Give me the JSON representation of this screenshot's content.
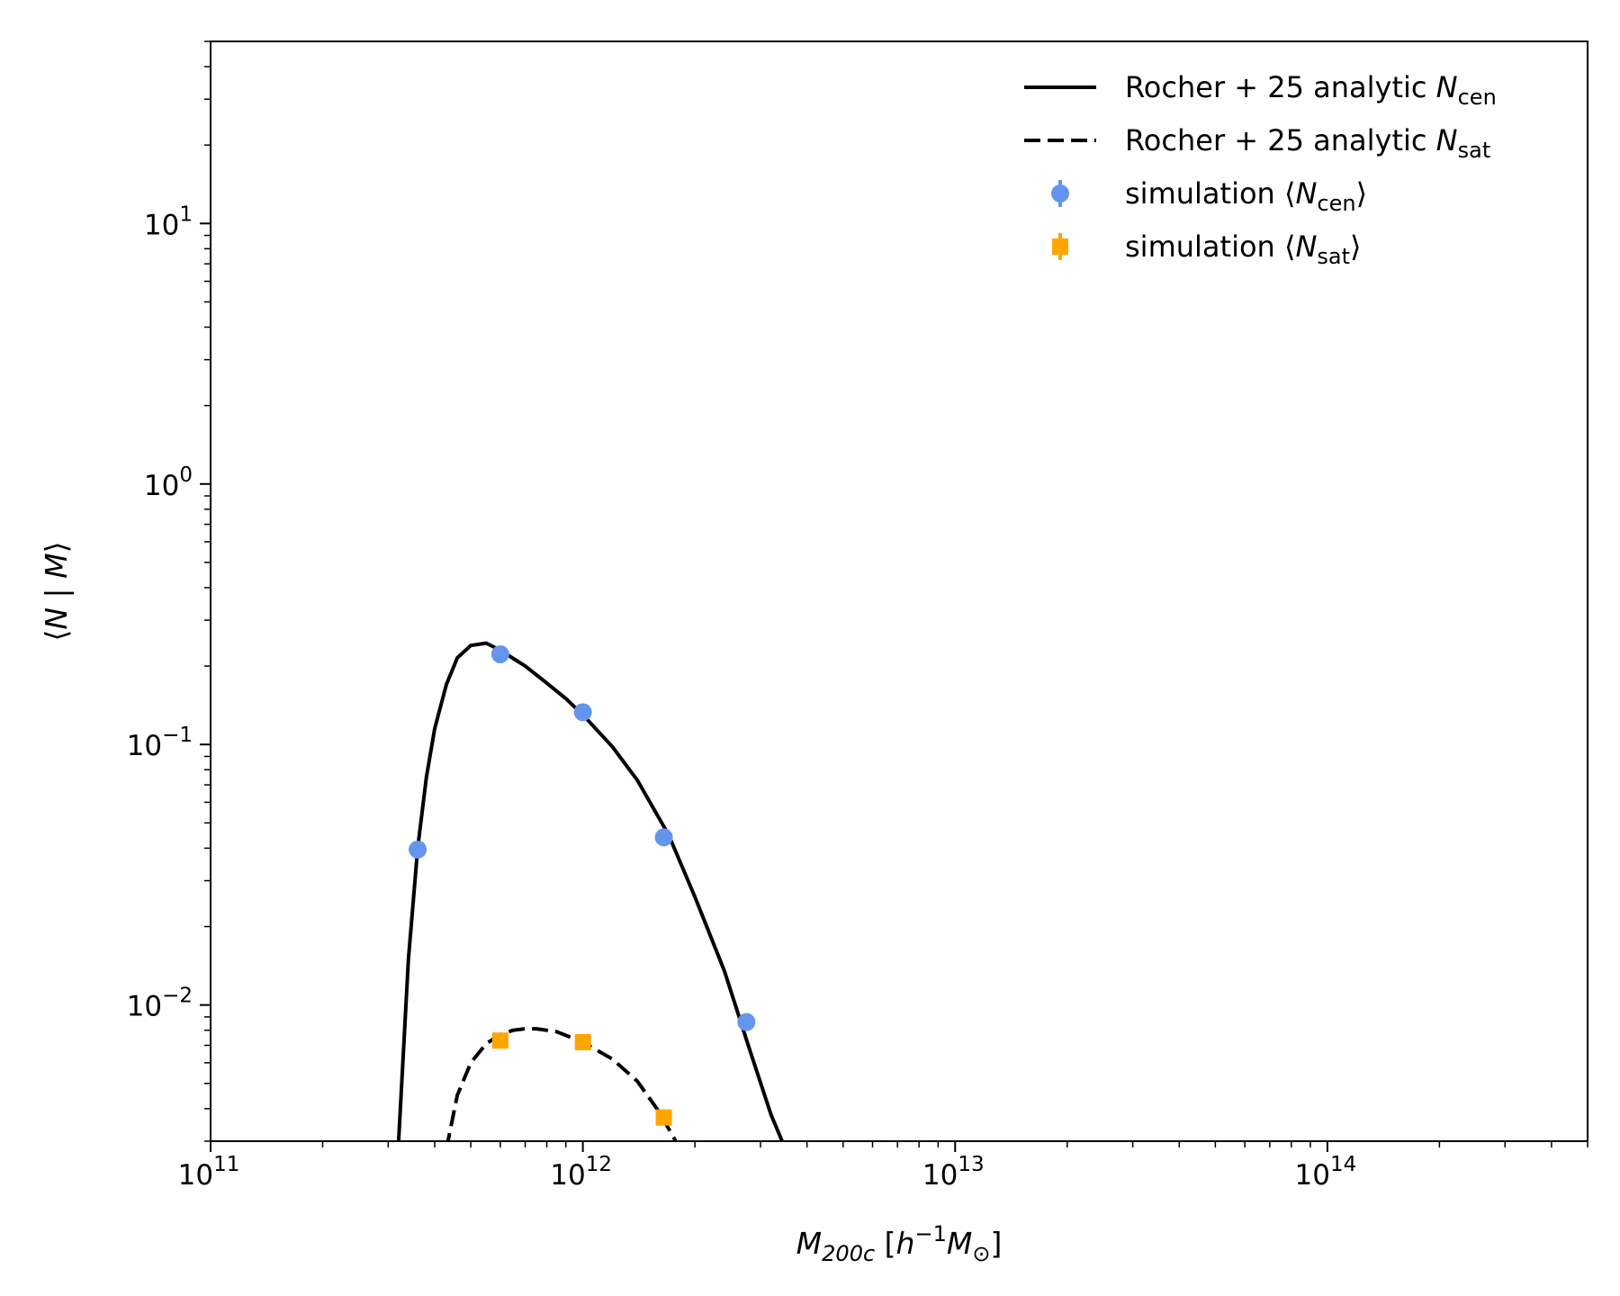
{
  "chart_data": {
    "type": "line",
    "title": "",
    "xlabel": {
      "base": "M",
      "sub": "200c",
      "unit_pre": " [",
      "unit_h": "h",
      "unit_exp": "−1",
      "unit_m": "M",
      "unit_sun": "⊙",
      "unit_post": "]"
    },
    "ylabel": {
      "open": "⟨",
      "n": "N",
      "sep": " | ",
      "m": "M",
      "close": "⟩"
    },
    "x_scale": "log",
    "y_scale": "log",
    "xlim": [
      100000000000.0,
      500000000000000.0
    ],
    "ylim": [
      0.003,
      50
    ],
    "x_ticks": [
      {
        "value": 100000000000.0,
        "base": "10",
        "exp": "11"
      },
      {
        "value": 1000000000000.0,
        "base": "10",
        "exp": "12"
      },
      {
        "value": 10000000000000.0,
        "base": "10",
        "exp": "13"
      },
      {
        "value": 100000000000000.0,
        "base": "10",
        "exp": "14"
      }
    ],
    "y_ticks": [
      {
        "value": 0.01,
        "base": "10",
        "exp": "−2"
      },
      {
        "value": 0.1,
        "base": "10",
        "exp": "−1"
      },
      {
        "value": 1,
        "base": "10",
        "exp": "0"
      },
      {
        "value": 10,
        "base": "10",
        "exp": "1"
      }
    ],
    "grid": false,
    "legend_position": "top-right",
    "series": [
      {
        "name": "Rocher + 25 analytic N_cen",
        "legend": {
          "prefix": "Rocher + 25 analytic ",
          "var": "N",
          "sub": "cen",
          "suffix": ""
        },
        "kind": "line",
        "style": "solid",
        "color": "#000000",
        "x": [
          320000000000.0,
          340000000000.0,
          360000000000.0,
          380000000000.0,
          400000000000.0,
          430000000000.0,
          460000000000.0,
          500000000000.0,
          550000000000.0,
          600000000000.0,
          700000000000.0,
          800000000000.0,
          900000000000.0,
          1000000000000.0,
          1200000000000.0,
          1400000000000.0,
          1700000000000.0,
          2000000000000.0,
          2400000000000.0,
          2800000000000.0,
          3200000000000.0,
          3500000000000.0
        ],
        "y": [
          0.003,
          0.015,
          0.04,
          0.075,
          0.115,
          0.17,
          0.215,
          0.24,
          0.245,
          0.23,
          0.2,
          0.172,
          0.15,
          0.13,
          0.098,
          0.073,
          0.045,
          0.026,
          0.0135,
          0.0068,
          0.0038,
          0.0028
        ]
      },
      {
        "name": "Rocher + 25 analytic N_sat",
        "legend": {
          "prefix": "Rocher + 25 analytic ",
          "var": "N",
          "sub": "sat",
          "suffix": ""
        },
        "kind": "line",
        "style": "dashed",
        "color": "#000000",
        "x": [
          430000000000.0,
          460000000000.0,
          500000000000.0,
          550000000000.0,
          600000000000.0,
          650000000000.0,
          700000000000.0,
          750000000000.0,
          850000000000.0,
          1000000000000.0,
          1200000000000.0,
          1400000000000.0,
          1600000000000.0,
          1800000000000.0
        ],
        "y": [
          0.0028,
          0.0045,
          0.006,
          0.0071,
          0.0077,
          0.008,
          0.0081,
          0.0081,
          0.0079,
          0.0072,
          0.0062,
          0.0051,
          0.0039,
          0.0029
        ]
      },
      {
        "name": "simulation ⟨N_cen⟩",
        "legend": {
          "prefix": "simulation ⟨",
          "var": "N",
          "sub": "cen",
          "suffix": "⟩"
        },
        "kind": "points",
        "marker": "circle",
        "color": "#6495ED",
        "x": [
          360000000000.0,
          600000000000.0,
          1000000000000.0,
          1650000000000.0,
          2750000000000.0
        ],
        "y": [
          0.0395,
          0.222,
          0.133,
          0.044,
          0.0086
        ]
      },
      {
        "name": "simulation ⟨N_sat⟩",
        "legend": {
          "prefix": "simulation ⟨",
          "var": "N",
          "sub": "sat",
          "suffix": "⟩"
        },
        "kind": "points",
        "marker": "square",
        "color": "#FFA500",
        "x": [
          600000000000.0,
          1000000000000.0,
          1650000000000.0
        ],
        "y": [
          0.0073,
          0.0072,
          0.0037
        ]
      }
    ]
  }
}
